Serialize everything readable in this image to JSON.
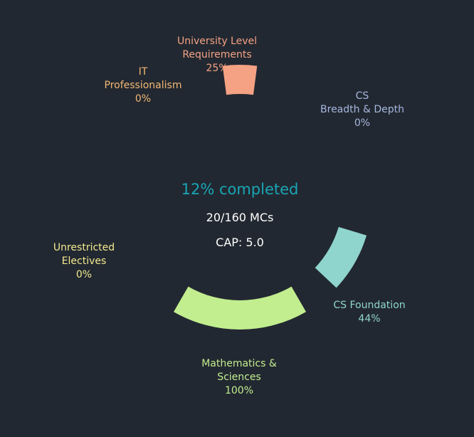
{
  "chart_data": {
    "type": "radial-progress",
    "segments": [
      {
        "name": "University Level Requirements",
        "label_lines": [
          "University Level",
          "Requirements"
        ],
        "percent_text": "25%",
        "value": 25,
        "color": "#f4a283"
      },
      {
        "name": "CS Breadth & Depth",
        "label_lines": [
          "CS",
          "Breadth & Depth"
        ],
        "percent_text": "0%",
        "value": 0,
        "color": "#a6b7df"
      },
      {
        "name": "CS Foundation",
        "label_lines": [
          "CS Foundation"
        ],
        "percent_text": "44%",
        "value": 44,
        "color": "#8fd5cd"
      },
      {
        "name": "Mathematics & Sciences",
        "label_lines": [
          "Mathematics &",
          "Sciences"
        ],
        "percent_text": "100%",
        "value": 100,
        "color": "#c2ee8f"
      },
      {
        "name": "Unrestricted Electives",
        "label_lines": [
          "Unrestricted",
          "Electives"
        ],
        "percent_text": "0%",
        "value": 0,
        "color": "#f3ea8e"
      },
      {
        "name": "IT Professionalism",
        "label_lines": [
          "IT",
          "Professionalism"
        ],
        "percent_text": "0%",
        "value": 0,
        "color": "#f2b874"
      }
    ]
  },
  "summary": {
    "completed_text": "12% completed",
    "completed_color": "#19a5b5",
    "mcs_text": "20/160 MCs",
    "cap_text": "CAP: 5.0"
  }
}
